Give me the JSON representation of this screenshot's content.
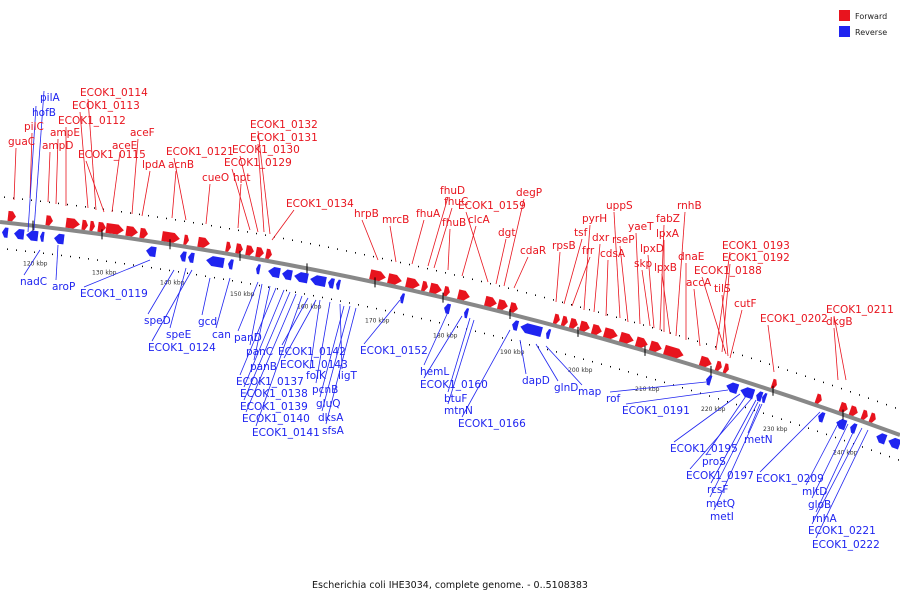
{
  "legend": {
    "forward_label": "Forward",
    "reverse_label": "Reverse",
    "forward_color": "#e8141e",
    "reverse_color": "#1f24f0"
  },
  "caption": "Escherichia coli IHE3034, complete genome. - 0..5108383",
  "colors": {
    "backbone": "#888888",
    "forward": "#e8141e",
    "reverse": "#1f24f0",
    "tick": "#000000"
  },
  "ticks": [
    "120 kbp",
    "130 kbp",
    "140 kbp",
    "150 kbp",
    "160 kbp",
    "170 kbp",
    "180 kbp",
    "190 kbp",
    "200 kbp",
    "210 kbp",
    "220 kbp",
    "230 kbp",
    "240 kbp"
  ],
  "forward_genes": [
    "guaC",
    "pilC",
    "ampD",
    "ampE",
    "ECOK1_0112",
    "ECOK1_0113",
    "ECOK1_0114",
    "aceE",
    "aceF",
    "lpdA",
    "ECOK1_0115",
    "acnB",
    "ECOK1_0121",
    "cueO",
    "hpt",
    "ECOK1_0129",
    "ECOK1_0130",
    "ECOK1_0131",
    "ECOK1_0132",
    "ECOK1_0134",
    "hrpB",
    "mrcB",
    "fhuA",
    "fhuD",
    "fhuC",
    "fhuB",
    "clcA",
    "ECOK1_0159",
    "dgt",
    "degP",
    "cdaR",
    "rpsB",
    "tsf",
    "frr",
    "pyrH",
    "dxr",
    "cdsA",
    "uppS",
    "rseP",
    "yaeT",
    "skp",
    "lpxD",
    "fabZ",
    "lpxA",
    "lpxB",
    "rnhB",
    "dnaE",
    "accA",
    "ECOK1_0193",
    "ECOK1_0192",
    "ECOK1_0188",
    "tilS",
    "cutF",
    "ECOK1_0202",
    "ECOK1_0211",
    "dkgB"
  ],
  "reverse_genes": [
    "pilA",
    "hofB",
    "nadC",
    "aroP",
    "ECOK1_0119",
    "speD",
    "speE",
    "gcd",
    "ECOK1_0124",
    "can",
    "panD",
    "panC",
    "panB",
    "ECOK1_0137",
    "ECOK1_0138",
    "ECOK1_0139",
    "ECOK1_0140",
    "ECOK1_0141",
    "ECOK1_0142",
    "ECOK1_0143",
    "folK",
    "pcnB",
    "ligT",
    "gluQ",
    "dksA",
    "sfsA",
    "ECOK1_0152",
    "hemL",
    "ECOK1_0160",
    "btuF",
    "mtnN",
    "ECOK1_0166",
    "dapD",
    "glnD",
    "map",
    "rof",
    "ECOK1_0191",
    "ECOK1_0195",
    "proS",
    "ECOK1_0197",
    "rcsF",
    "metQ",
    "metI",
    "metN",
    "ECOK1_0209",
    "mltD",
    "gloB",
    "rnhA",
    "ECOK1_0221",
    "ECOK1_0222"
  ]
}
